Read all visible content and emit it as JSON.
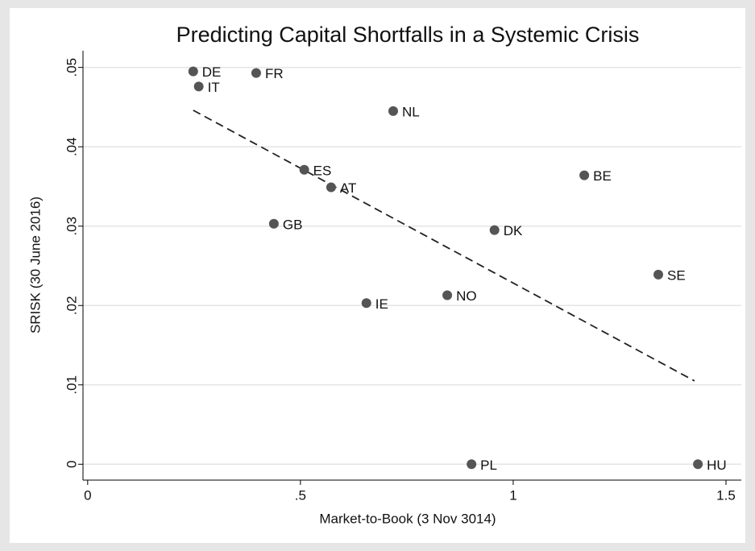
{
  "chart_data": {
    "type": "scatter",
    "title": "Predicting Capital Shortfalls in a Systemic Crisis",
    "xlabel": "Market-to-Book (3 Nov 3014)",
    "ylabel": "SRISK (30 June 2016)",
    "labels": [
      "DE",
      "IT",
      "FR",
      "NL",
      "ES",
      "AT",
      "BE",
      "GB",
      "DK",
      "SE",
      "IE",
      "NO",
      "PL",
      "HU"
    ],
    "x": [
      0.248,
      0.261,
      0.396,
      0.718,
      0.509,
      0.572,
      1.167,
      0.4375,
      0.956,
      1.341,
      0.655,
      0.845,
      0.902,
      1.434
    ],
    "y": [
      0.0495,
      0.0476,
      0.0493,
      0.0445,
      0.0371,
      0.0349,
      0.0364,
      0.0303,
      0.0295,
      0.0239,
      0.0203,
      0.0213,
      0,
      0
    ],
    "color": "#555555",
    "fit_line": {
      "x": [
        0.248,
        1.426
      ],
      "y": [
        0.0446,
        0.0105
      ]
    },
    "xlim": [
      -0.011,
      1.536
    ],
    "ylim": [
      -0.002,
      0.0521
    ],
    "xticks": [
      0,
      {
        "value": 0.5,
        "label": ".5"
      },
      1,
      1.5
    ],
    "yticks": [
      0,
      {
        "value": 0.01,
        "label": ".01"
      },
      {
        "value": 0.02,
        "label": ".02"
      },
      {
        "value": 0.03,
        "label": ".03"
      },
      {
        "value": 0.04,
        "label": ".04"
      },
      {
        "value": 0.05,
        "label": ".05"
      }
    ],
    "grid": true
  }
}
